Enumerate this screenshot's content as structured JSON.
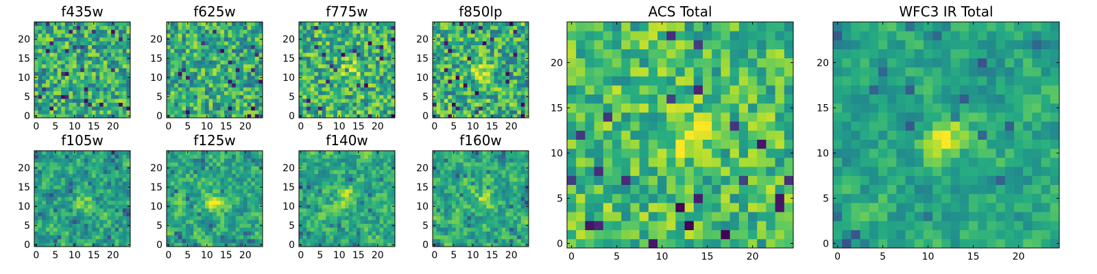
{
  "figure": {
    "description_free": true
  },
  "chart_data": [
    {
      "type": "heatmap",
      "title": "f435w",
      "grid_size": 25,
      "xlim": [
        0,
        24
      ],
      "ylim": [
        0,
        24
      ],
      "xticks": [
        0,
        5,
        10,
        15,
        20
      ],
      "yticks": [
        0,
        5,
        10,
        15,
        20
      ],
      "colormap": "viridis",
      "seed": 435,
      "bias": 0.62,
      "noise": 0.55,
      "blur": 0,
      "bright_spot": null
    },
    {
      "type": "heatmap",
      "title": "f625w",
      "grid_size": 25,
      "xlim": [
        0,
        24
      ],
      "ylim": [
        0,
        24
      ],
      "xticks": [
        0,
        5,
        10,
        15,
        20
      ],
      "yticks": [
        0,
        5,
        10,
        15,
        20
      ],
      "colormap": "viridis",
      "seed": 625,
      "bias": 0.62,
      "noise": 0.55,
      "blur": 0,
      "bright_spot": null
    },
    {
      "type": "heatmap",
      "title": "f775w",
      "grid_size": 25,
      "xlim": [
        0,
        24
      ],
      "ylim": [
        0,
        24
      ],
      "xticks": [
        0,
        5,
        10,
        15,
        20
      ],
      "yticks": [
        0,
        5,
        10,
        15,
        20
      ],
      "colormap": "viridis",
      "seed": 775,
      "bias": 0.64,
      "noise": 0.55,
      "blur": 0,
      "bright_spot": [
        13,
        12
      ]
    },
    {
      "type": "heatmap",
      "title": "f850lp",
      "grid_size": 25,
      "xlim": [
        0,
        24
      ],
      "ylim": [
        0,
        24
      ],
      "xticks": [
        0,
        5,
        10,
        15,
        20
      ],
      "yticks": [
        0,
        5,
        10,
        15,
        20
      ],
      "colormap": "viridis",
      "seed": 850,
      "bias": 0.64,
      "noise": 0.55,
      "blur": 0,
      "bright_spot": [
        12,
        12
      ]
    },
    {
      "type": "heatmap",
      "title": "f105w",
      "grid_size": 25,
      "xlim": [
        0,
        24
      ],
      "ylim": [
        0,
        24
      ],
      "xticks": [
        0,
        5,
        10,
        15,
        20
      ],
      "yticks": [
        0,
        5,
        10,
        15,
        20
      ],
      "colormap": "viridis",
      "seed": 105,
      "bias": 0.6,
      "noise": 0.6,
      "blur": 1,
      "bright_spot": [
        13,
        11
      ]
    },
    {
      "type": "heatmap",
      "title": "f125w",
      "grid_size": 25,
      "xlim": [
        0,
        24
      ],
      "ylim": [
        0,
        24
      ],
      "xticks": [
        0,
        5,
        10,
        15,
        20
      ],
      "yticks": [
        0,
        5,
        10,
        15,
        20
      ],
      "colormap": "viridis",
      "seed": 125,
      "bias": 0.62,
      "noise": 0.6,
      "blur": 1,
      "bright_spot": [
        12,
        11
      ]
    },
    {
      "type": "heatmap",
      "title": "f140w",
      "grid_size": 25,
      "xlim": [
        0,
        24
      ],
      "ylim": [
        0,
        24
      ],
      "xticks": [
        0,
        5,
        10,
        15,
        20
      ],
      "yticks": [
        0,
        5,
        10,
        15,
        20
      ],
      "colormap": "viridis",
      "seed": 140,
      "bias": 0.62,
      "noise": 0.6,
      "blur": 1,
      "bright_spot": [
        12,
        12
      ]
    },
    {
      "type": "heatmap",
      "title": "f160w",
      "grid_size": 25,
      "xlim": [
        0,
        24
      ],
      "ylim": [
        0,
        24
      ],
      "xticks": [
        0,
        5,
        10,
        15,
        20
      ],
      "yticks": [
        0,
        5,
        10,
        15,
        20
      ],
      "colormap": "viridis",
      "seed": 160,
      "bias": 0.62,
      "noise": 0.6,
      "blur": 1,
      "bright_spot": [
        13,
        12
      ]
    },
    {
      "type": "heatmap",
      "title": "ACS Total",
      "grid_size": 25,
      "xlim": [
        0,
        24
      ],
      "ylim": [
        0,
        24
      ],
      "xticks": [
        0,
        5,
        10,
        15,
        20
      ],
      "yticks": [
        0,
        5,
        10,
        15,
        20
      ],
      "colormap": "viridis",
      "seed": 999,
      "bias": 0.7,
      "noise": 0.45,
      "blur": 0,
      "bright_spot": [
        13,
        12
      ]
    },
    {
      "type": "heatmap",
      "title": "WFC3 IR Total",
      "grid_size": 25,
      "xlim": [
        0,
        24
      ],
      "ylim": [
        0,
        24
      ],
      "xticks": [
        0,
        5,
        10,
        15,
        20
      ],
      "yticks": [
        0,
        5,
        10,
        15,
        20
      ],
      "colormap": "viridis",
      "seed": 3,
      "bias": 0.6,
      "noise": 0.45,
      "blur": 1,
      "bright_spot": [
        12,
        12
      ]
    }
  ]
}
